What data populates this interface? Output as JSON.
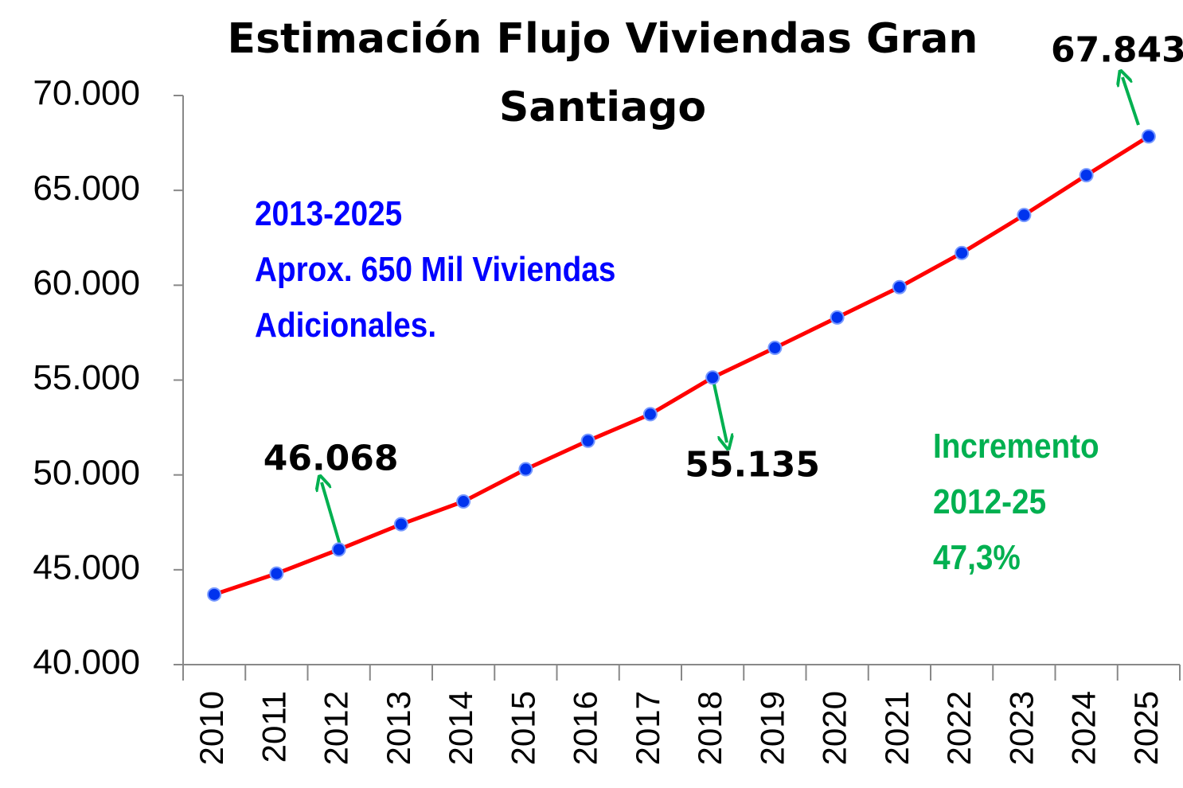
{
  "chart_data": {
    "type": "line",
    "title": "Estimación Flujo Viviendas Gran Santiago",
    "categories": [
      "2010",
      "2011",
      "2012",
      "2013",
      "2014",
      "2015",
      "2016",
      "2017",
      "2018",
      "2019",
      "2020",
      "2021",
      "2022",
      "2023",
      "2024",
      "2025"
    ],
    "values": [
      43700,
      44800,
      46068,
      47400,
      48600,
      50300,
      51800,
      53200,
      55135,
      56700,
      58300,
      59900,
      61700,
      63700,
      65800,
      67843
    ],
    "value_labels": [
      null,
      null,
      "46.068",
      null,
      null,
      null,
      null,
      null,
      "55.135",
      null,
      null,
      null,
      null,
      null,
      null,
      "67.843"
    ],
    "line_color": "#ff0000",
    "marker_color": "#0033ee",
    "ylim": [
      40000,
      70000
    ],
    "yticks": [
      {
        "value": 40000,
        "label": "40.000"
      },
      {
        "value": 45000,
        "label": "45.000"
      },
      {
        "value": 50000,
        "label": "50.000"
      },
      {
        "value": 55000,
        "label": "55.000"
      },
      {
        "value": 60000,
        "label": "60.000"
      },
      {
        "value": 65000,
        "label": "65.000"
      },
      {
        "value": 70000,
        "label": "70.000"
      }
    ],
    "grid": false,
    "annotations": [
      {
        "text": [
          "2013-2025",
          "Aprox. 650 Mil Viviendas",
          "Adicionales."
        ],
        "color": "#0000ff"
      },
      {
        "text": [
          "Incremento",
          "2012-25",
          "47,3%"
        ],
        "color": "#00b050"
      }
    ]
  }
}
